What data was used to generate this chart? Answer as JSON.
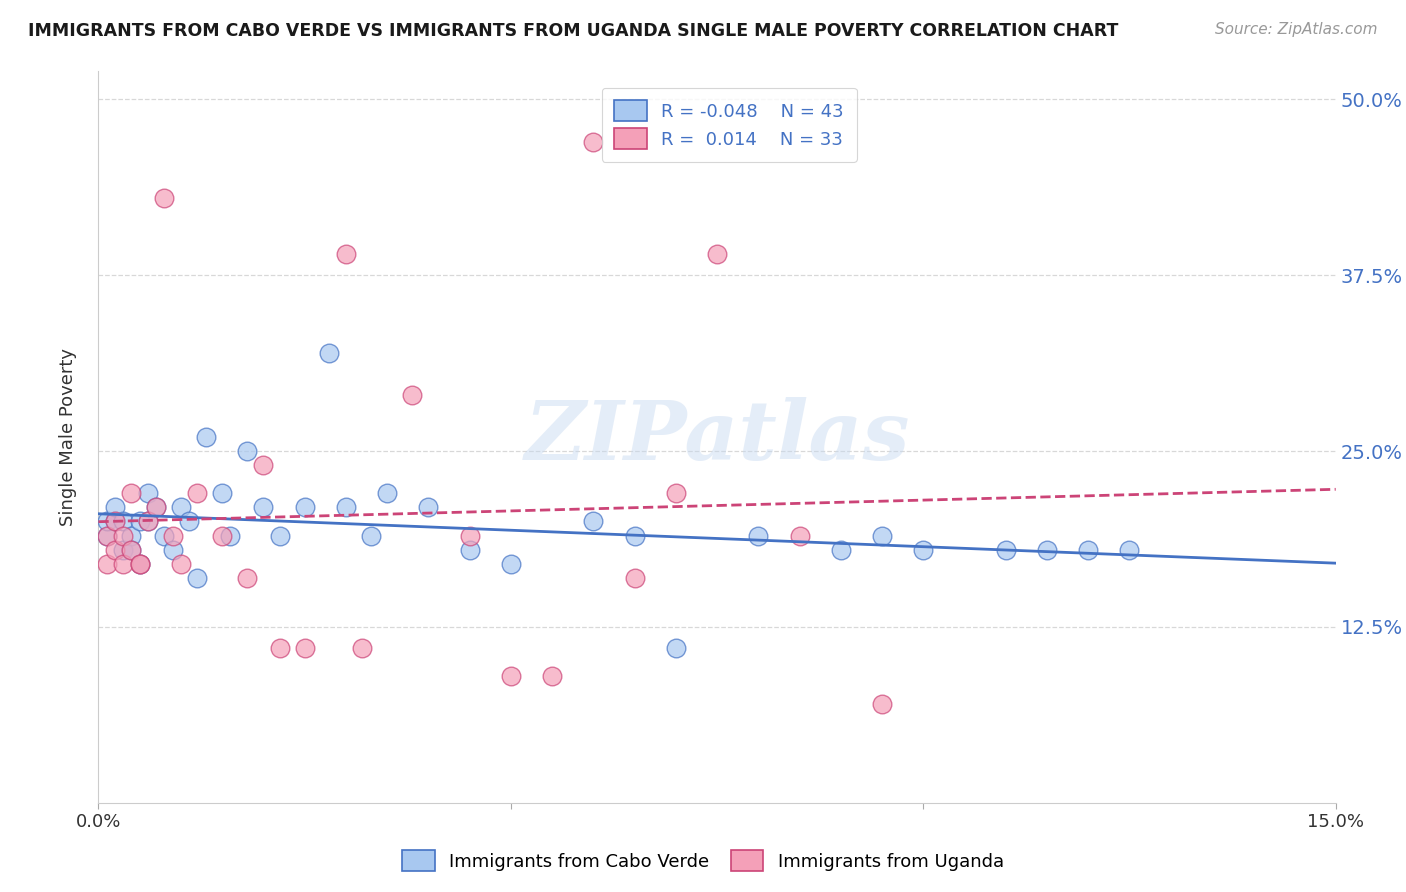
{
  "title": "IMMIGRANTS FROM CABO VERDE VS IMMIGRANTS FROM UGANDA SINGLE MALE POVERTY CORRELATION CHART",
  "source": "Source: ZipAtlas.com",
  "ylabel": "Single Male Poverty",
  "xmin": 0.0,
  "xmax": 0.15,
  "ymin": 0.0,
  "ymax": 0.52,
  "yticks": [
    0.125,
    0.25,
    0.375,
    0.5
  ],
  "ytick_labels": [
    "12.5%",
    "25.0%",
    "37.5%",
    "50.0%"
  ],
  "color_blue": "#a8c8f0",
  "color_pink": "#f4a0b8",
  "color_blue_line": "#4472c4",
  "color_pink_line": "#cc4477",
  "watermark_text": "ZIPatlas",
  "cabo_verde_x": [
    0.001,
    0.001,
    0.002,
    0.002,
    0.003,
    0.003,
    0.004,
    0.004,
    0.005,
    0.005,
    0.006,
    0.006,
    0.007,
    0.008,
    0.009,
    0.01,
    0.011,
    0.012,
    0.013,
    0.015,
    0.016,
    0.018,
    0.02,
    0.022,
    0.025,
    0.028,
    0.03,
    0.033,
    0.035,
    0.04,
    0.045,
    0.05,
    0.06,
    0.065,
    0.07,
    0.08,
    0.09,
    0.095,
    0.1,
    0.11,
    0.115,
    0.12,
    0.125
  ],
  "cabo_verde_y": [
    0.19,
    0.2,
    0.2,
    0.21,
    0.18,
    0.2,
    0.19,
    0.18,
    0.17,
    0.2,
    0.2,
    0.22,
    0.21,
    0.19,
    0.18,
    0.21,
    0.2,
    0.16,
    0.26,
    0.22,
    0.19,
    0.25,
    0.21,
    0.19,
    0.21,
    0.32,
    0.21,
    0.19,
    0.22,
    0.21,
    0.18,
    0.17,
    0.2,
    0.19,
    0.11,
    0.19,
    0.18,
    0.19,
    0.18,
    0.18,
    0.18,
    0.18,
    0.18
  ],
  "uganda_x": [
    0.001,
    0.001,
    0.002,
    0.002,
    0.003,
    0.003,
    0.004,
    0.004,
    0.005,
    0.005,
    0.006,
    0.007,
    0.008,
    0.009,
    0.01,
    0.012,
    0.015,
    0.018,
    0.02,
    0.022,
    0.025,
    0.03,
    0.032,
    0.038,
    0.045,
    0.05,
    0.055,
    0.06,
    0.065,
    0.07,
    0.075,
    0.085,
    0.095
  ],
  "uganda_y": [
    0.17,
    0.19,
    0.18,
    0.2,
    0.17,
    0.19,
    0.18,
    0.22,
    0.17,
    0.17,
    0.2,
    0.21,
    0.43,
    0.19,
    0.17,
    0.22,
    0.19,
    0.16,
    0.24,
    0.11,
    0.11,
    0.39,
    0.11,
    0.29,
    0.19,
    0.09,
    0.09,
    0.47,
    0.16,
    0.22,
    0.39,
    0.19,
    0.07
  ],
  "background_color": "#ffffff",
  "grid_color": "#d8d8d8"
}
